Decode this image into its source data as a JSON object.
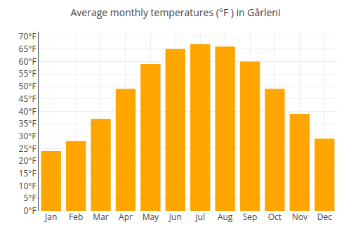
{
  "chart_data": {
    "type": "bar",
    "title": "Average monthly temperatures (°F ) in Gârleni",
    "categories": [
      "Jan",
      "Feb",
      "Mar",
      "Apr",
      "May",
      "Jun",
      "Jul",
      "Aug",
      "Sep",
      "Oct",
      "Nov",
      "Dec"
    ],
    "values": [
      24,
      28,
      37,
      49,
      59,
      65,
      67,
      66,
      60,
      49,
      39,
      29
    ],
    "color": "#FFA500",
    "ylim": [
      0,
      72
    ],
    "yticks": [
      {
        "value": 0,
        "label": "0°F"
      },
      {
        "value": 5,
        "label": "5°F"
      },
      {
        "value": 10,
        "label": "10°F"
      },
      {
        "value": 15,
        "label": "15°F"
      },
      {
        "value": 20,
        "label": "20°F"
      },
      {
        "value": 25,
        "label": "25°F"
      },
      {
        "value": 30,
        "label": "30°F"
      },
      {
        "value": 35,
        "label": "35°F"
      },
      {
        "value": 40,
        "label": "40°F"
      },
      {
        "value": 45,
        "label": "45°F"
      },
      {
        "value": 50,
        "label": "50°F"
      },
      {
        "value": 55,
        "label": "55°F"
      },
      {
        "value": 60,
        "label": "60°F"
      },
      {
        "value": 65,
        "label": "65°F"
      },
      {
        "value": 70,
        "label": "70°F"
      }
    ],
    "grid": true
  }
}
